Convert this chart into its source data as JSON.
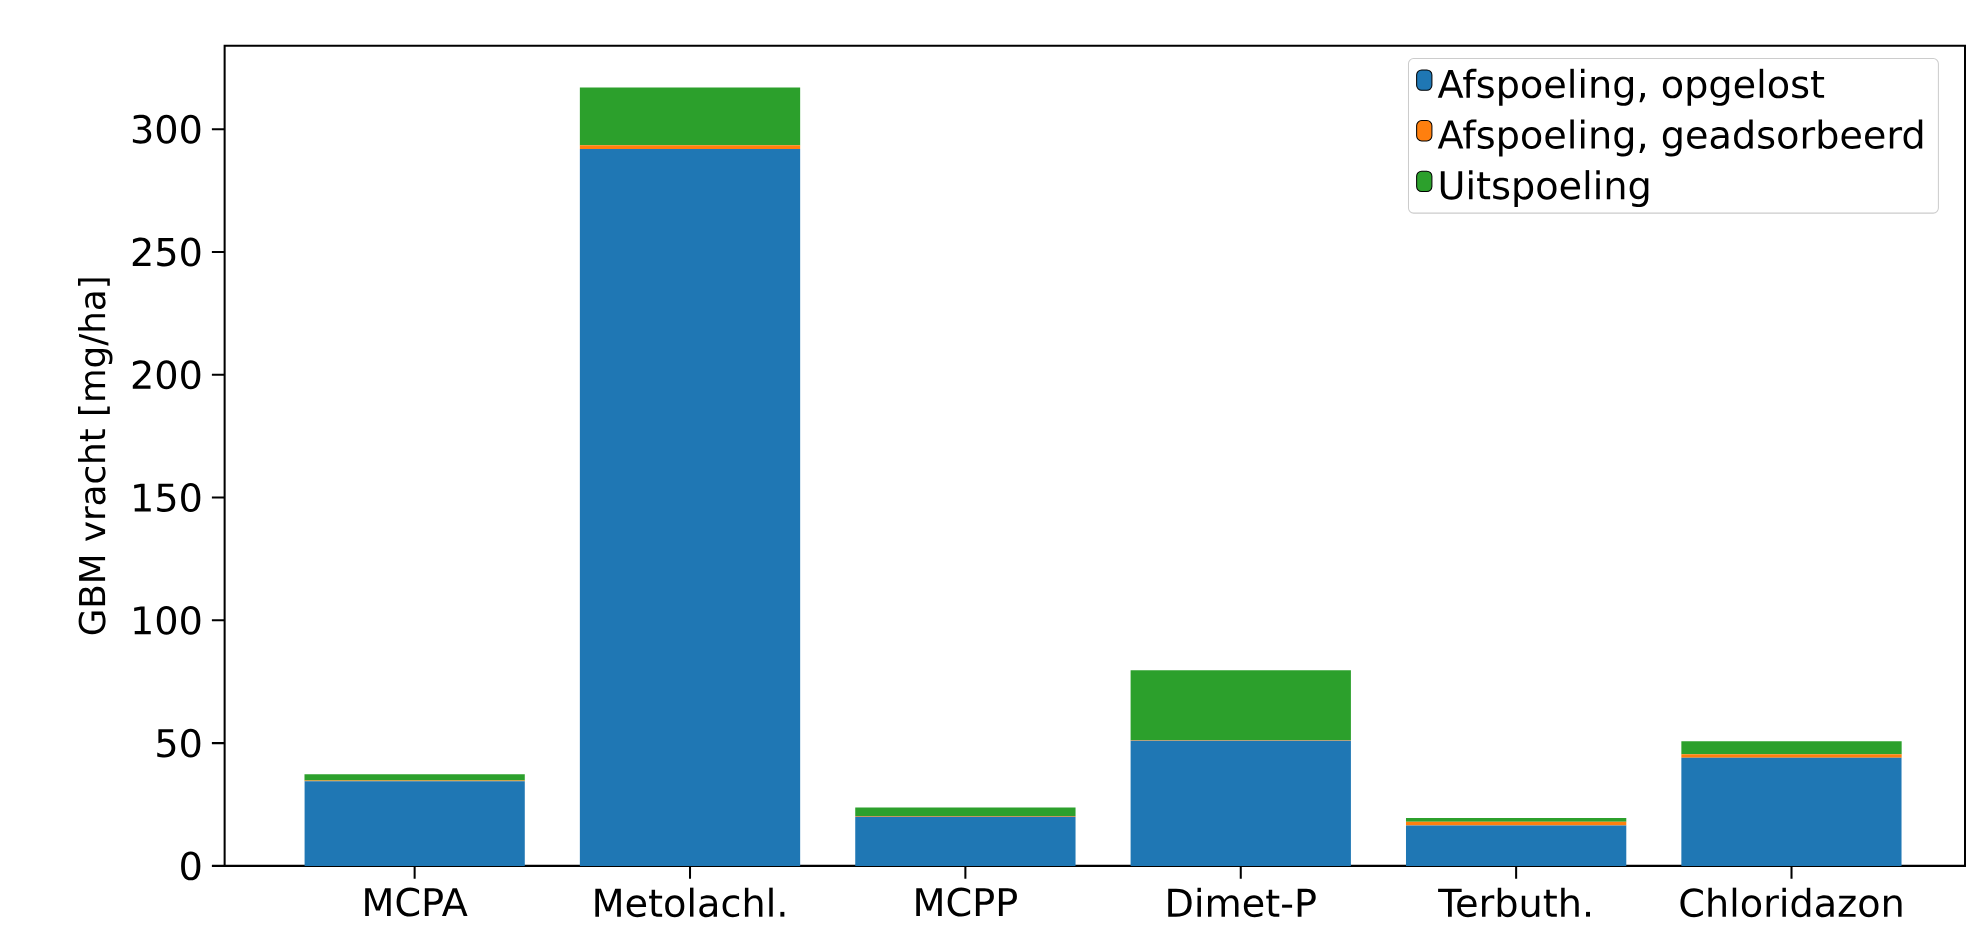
{
  "chart_data": {
    "type": "bar",
    "stacked": true,
    "ylabel": "GBM vracht [mg/ha]",
    "categories": [
      "MCPA",
      "Metolachl.",
      "MCPP",
      "Dimet-P",
      "Terbuth.",
      "Chloridazon"
    ],
    "series": [
      {
        "name": "Afspoeling, opgelost",
        "color": "#1f77b4",
        "values": [
          34.5,
          292,
          20,
          51,
          16.5,
          44
        ]
      },
      {
        "name": "Afspoeling, geadsorbeerd",
        "color": "#ff7f0e",
        "values": [
          0.3,
          1.5,
          0.3,
          0.2,
          1.5,
          1.5
        ]
      },
      {
        "name": "Uitspoeling",
        "color": "#2ca02c",
        "values": [
          2.5,
          23.5,
          3.5,
          28.5,
          1.5,
          5.3
        ]
      }
    ],
    "ylim": [
      0,
      334
    ],
    "yticks": [
      0,
      50,
      100,
      150,
      200,
      250,
      300
    ],
    "legend": "top right",
    "grid": false
  }
}
